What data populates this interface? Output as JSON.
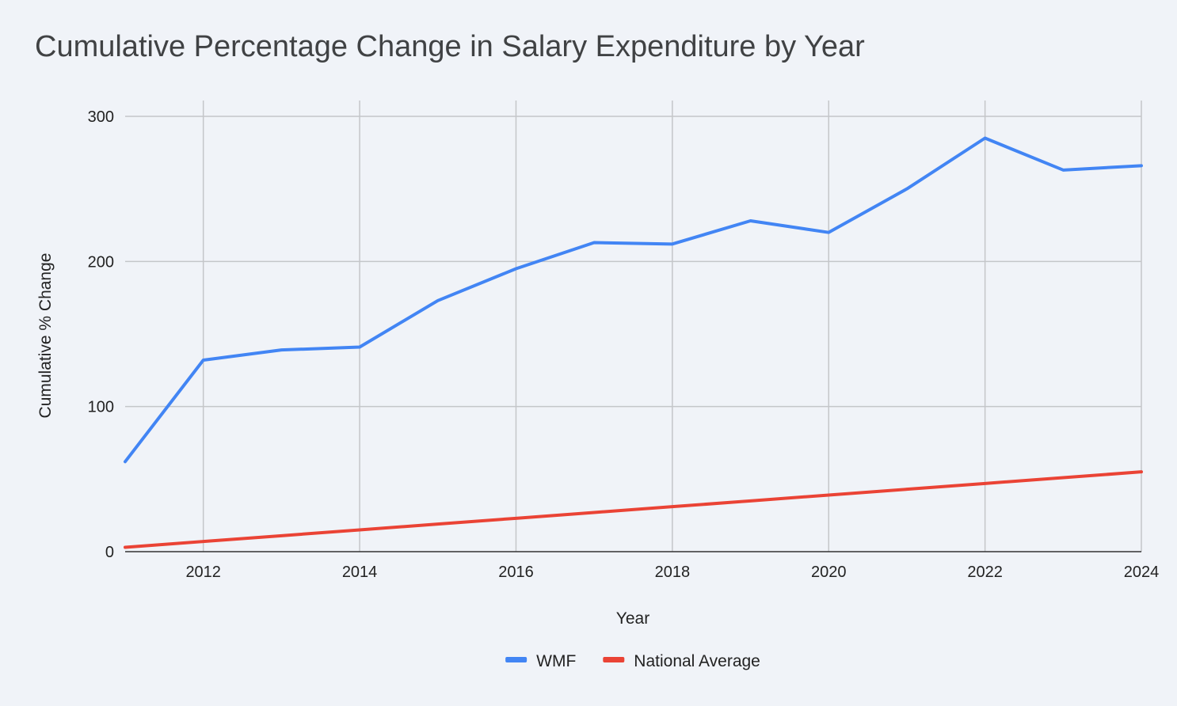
{
  "chart_data": {
    "type": "line",
    "title": "Cumulative Percentage Change in Salary Expenditure by Year",
    "xlabel": "Year",
    "ylabel": "Cumulative % Change",
    "x": [
      2011,
      2012,
      2013,
      2014,
      2015,
      2016,
      2017,
      2018,
      2019,
      2020,
      2021,
      2022,
      2023,
      2024
    ],
    "xlim": [
      2011,
      2024
    ],
    "ylim": [
      0,
      300
    ],
    "x_ticks": [
      "2012",
      "2014",
      "2016",
      "2018",
      "2020",
      "2022",
      "2024"
    ],
    "y_ticks": [
      "0",
      "100",
      "200",
      "300"
    ],
    "grid": true,
    "legend_position": "bottom",
    "series": [
      {
        "name": "WMF",
        "color": "#4285f4",
        "values": [
          62,
          132,
          139,
          141,
          173,
          195,
          213,
          212,
          228,
          220,
          250,
          285,
          263,
          266
        ]
      },
      {
        "name": "National Average",
        "color": "#ea4335",
        "values": [
          3,
          7,
          11,
          15,
          19,
          23,
          27,
          31,
          35,
          39,
          43,
          47,
          51,
          55
        ]
      }
    ]
  }
}
